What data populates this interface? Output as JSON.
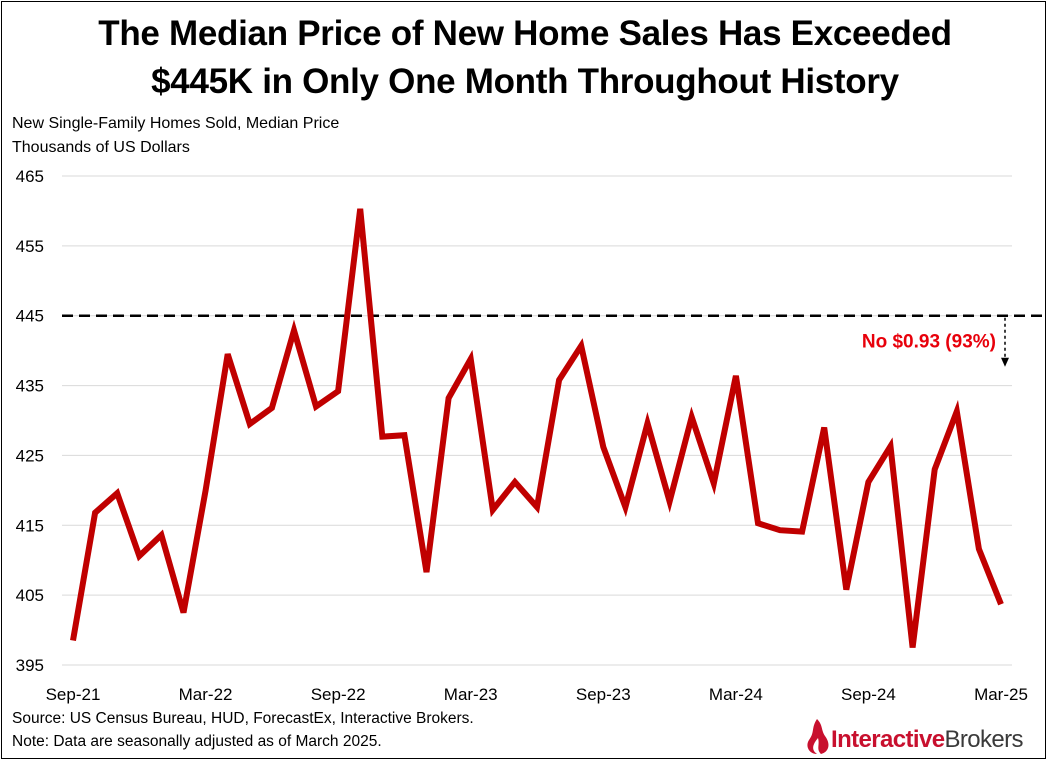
{
  "title_line1": "The Median Price of New Home Sales Has Exceeded",
  "title_line2": "$445K in Only One Month Throughout History",
  "subtitle_line1": "New Single-Family Homes Sold, Median Price",
  "subtitle_line2": "Thousands of US Dollars",
  "source_note": "Source: US Census Bureau, HUD, ForecastEx, Interactive Brokers.",
  "data_note": "Note: Data are seasonally adjusted as of March 2025.",
  "logo": {
    "part1": "Interactive",
    "part2": "Brokers",
    "icon": "flame-icon"
  },
  "colors": {
    "line": "#c00000",
    "threshold": "#000000",
    "annotation": "#e8000b",
    "grid": "#d9d9d9"
  },
  "chart_data": {
    "type": "line",
    "title": "The Median Price of New Home Sales Has Exceeded $445K in Only One Month Throughout History",
    "ylabel": "Thousands of US Dollars",
    "xlabel": "",
    "ylim": [
      395,
      465
    ],
    "yticks": [
      395,
      405,
      415,
      425,
      435,
      445,
      455,
      465
    ],
    "grid": true,
    "x_tick_labels": [
      "Sep-21",
      "Mar-22",
      "Sep-22",
      "Mar-23",
      "Sep-23",
      "Mar-24",
      "Sep-24",
      "Mar-25"
    ],
    "x_tick_indices": [
      0,
      6,
      12,
      18,
      24,
      30,
      36,
      42
    ],
    "x": [
      "Sep-21",
      "Oct-21",
      "Nov-21",
      "Dec-21",
      "Jan-22",
      "Feb-22",
      "Mar-22",
      "Apr-22",
      "May-22",
      "Jun-22",
      "Jul-22",
      "Aug-22",
      "Sep-22",
      "Oct-22",
      "Nov-22",
      "Dec-22",
      "Jan-23",
      "Feb-23",
      "Mar-23",
      "Apr-23",
      "May-23",
      "Jun-23",
      "Jul-23",
      "Aug-23",
      "Sep-23",
      "Oct-23",
      "Nov-23",
      "Dec-23",
      "Jan-24",
      "Feb-24",
      "Mar-24",
      "Apr-24",
      "May-24",
      "Jun-24",
      "Jul-24",
      "Aug-24",
      "Sep-24",
      "Oct-24",
      "Nov-24",
      "Dec-24",
      "Jan-25",
      "Feb-25",
      "Mar-25"
    ],
    "series": [
      {
        "name": "New Single-Family Homes Sold, Median Price",
        "values": [
          398.5,
          416.8,
          419.6,
          410.6,
          413.6,
          402.5,
          420.0,
          439.5,
          429.5,
          431.8,
          442.9,
          432.0,
          434.2,
          460.3,
          427.7,
          427.9,
          408.3,
          433.2,
          438.8,
          417.2,
          421.2,
          417.6,
          435.8,
          440.7,
          426.2,
          417.6,
          429.6,
          418.4,
          430.5,
          421.0,
          436.4,
          415.3,
          414.3,
          414.1,
          429.0,
          405.8,
          421.2,
          426.3,
          397.5,
          423.0,
          431.3,
          411.6,
          403.7
        ]
      }
    ],
    "threshold": {
      "value": 445,
      "style": "dashed"
    },
    "annotation": {
      "text": "No $0.93 (93%)"
    }
  }
}
